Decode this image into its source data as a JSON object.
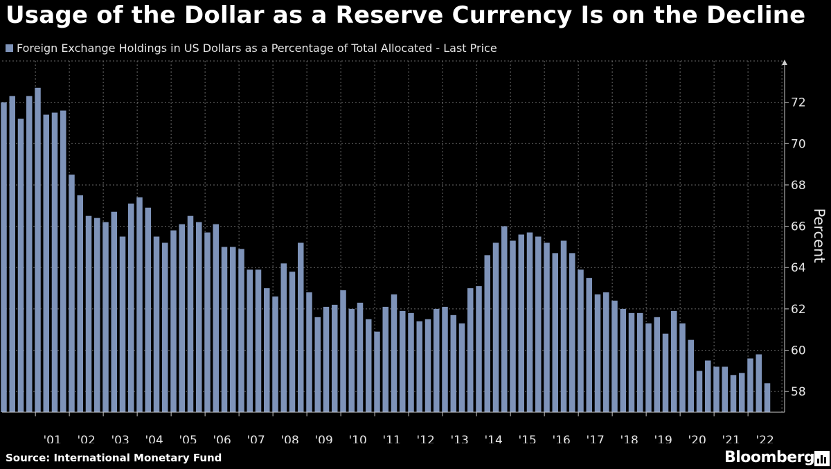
{
  "title": "Usage of the Dollar as a Reserve Currency Is on the Decline",
  "source": "Source: International Monetary Fund",
  "brand": "Bloomberg",
  "colors": {
    "background": "#000000",
    "bar": "#7e93b9",
    "grid": "#6b6b6b",
    "text": "#e6e6e6"
  },
  "chart_data": {
    "type": "bar",
    "title": "Usage of the Dollar as a Reserve Currency Is on the Decline",
    "legend": [
      "Foreign Exchange Holdings in US Dollars as a Percentage of Total Allocated - Last Price"
    ],
    "xlabel": "",
    "ylabel": "Percent",
    "ylim": [
      57,
      74
    ],
    "yticks": [
      58,
      60,
      62,
      64,
      66,
      68,
      70,
      72
    ],
    "grid": true,
    "frequency": "quarterly",
    "start": "2000 Q1",
    "year_labels": [
      "'01",
      "'02",
      "'03",
      "'04",
      "'05",
      "'06",
      "'07",
      "'08",
      "'09",
      "'10",
      "'11",
      "'12",
      "'13",
      "'14",
      "'15",
      "'16",
      "'17",
      "'18",
      "'19",
      "'20",
      "'21",
      "'22"
    ],
    "series": [
      {
        "name": "Foreign Exchange Holdings in US Dollars as a Percentage of Total Allocated - Last Price",
        "values": [
          72.0,
          72.3,
          71.2,
          72.3,
          72.7,
          71.4,
          71.5,
          71.6,
          68.5,
          67.5,
          66.5,
          66.4,
          66.2,
          66.7,
          65.5,
          67.1,
          67.4,
          66.9,
          65.5,
          65.2,
          65.8,
          66.1,
          66.5,
          66.2,
          65.7,
          66.1,
          65.0,
          65.0,
          64.9,
          63.9,
          63.9,
          63.0,
          62.6,
          64.2,
          63.8,
          65.2,
          62.8,
          61.6,
          62.1,
          62.2,
          62.9,
          62.0,
          62.3,
          61.5,
          60.9,
          62.1,
          62.7,
          61.9,
          61.8,
          61.4,
          61.5,
          62.0,
          62.1,
          61.7,
          61.3,
          63.0,
          63.1,
          64.6,
          65.2,
          66.0,
          65.3,
          65.6,
          65.7,
          65.5,
          65.2,
          64.7,
          65.3,
          64.7,
          63.9,
          63.5,
          62.7,
          62.8,
          62.4,
          62.0,
          61.8,
          61.8,
          61.3,
          61.6,
          60.8,
          61.9,
          61.3,
          60.5,
          59.0,
          59.5,
          59.2,
          59.2,
          58.8,
          58.9,
          59.6,
          59.8,
          58.4
        ]
      }
    ]
  }
}
